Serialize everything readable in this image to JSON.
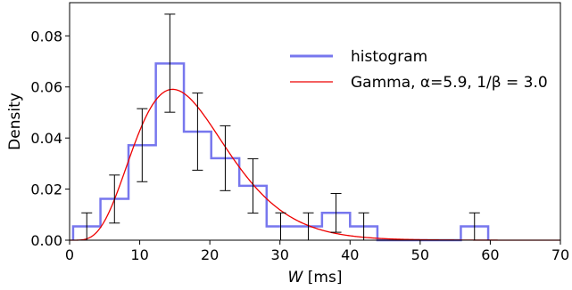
{
  "chart_data": {
    "type": "histogram",
    "xlabel_italic": "W",
    "xlabel_unit": " [ms]",
    "ylabel": "Density",
    "xlim": [
      0,
      70
    ],
    "ylim": [
      0,
      0.093
    ],
    "xticks": [
      0,
      10,
      20,
      30,
      40,
      50,
      60,
      70
    ],
    "yticks": [
      0.0,
      0.02,
      0.04,
      0.06,
      0.08
    ],
    "grid": false,
    "legend_position": "upper-right",
    "bin_edges": [
      0.5,
      4.4,
      8.4,
      12.3,
      16.3,
      20.2,
      24.2,
      28.1,
      32.1,
      36.0,
      40.0,
      43.9,
      47.9,
      51.8,
      55.8,
      59.7
    ],
    "densities": [
      0.0054,
      0.0162,
      0.0372,
      0.0692,
      0.0425,
      0.0321,
      0.0213,
      0.0054,
      0.0054,
      0.0107,
      0.0054,
      0.0,
      0.0,
      0.0,
      0.0054
    ],
    "error_bars": {
      "centers": [
        2.45,
        6.4,
        10.35,
        14.3,
        18.25,
        22.2,
        26.15,
        30.1,
        34.05,
        38.0,
        41.95,
        45.9,
        49.85,
        53.8,
        57.75
      ],
      "lower": [
        0.0,
        0.0067,
        0.0229,
        0.0501,
        0.0274,
        0.0194,
        0.0106,
        0.0,
        0.0,
        0.0031,
        0.0,
        0.0,
        0.0,
        0.0,
        0.0
      ],
      "upper": [
        0.0107,
        0.0255,
        0.0515,
        0.0885,
        0.0576,
        0.0448,
        0.0319,
        0.0107,
        0.0107,
        0.0183,
        0.0107,
        0.0,
        0.0,
        0.0,
        0.0107
      ]
    },
    "series": [
      {
        "name": "histogram",
        "kind": "step",
        "color": "#7777ee"
      },
      {
        "name": "Gamma, α=5.9, 1/β = 3.0",
        "kind": "line",
        "color": "#ee0000",
        "alpha": 5.9,
        "scale": 3.0
      }
    ]
  }
}
